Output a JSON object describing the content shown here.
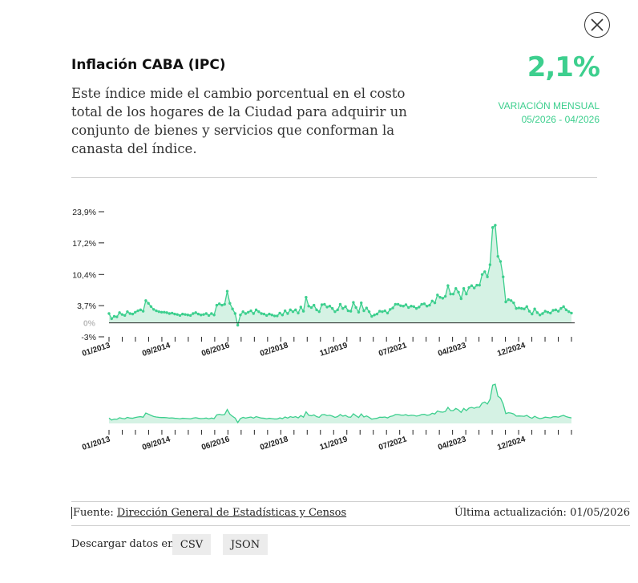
{
  "header": {
    "title": "Inflación CABA (IPC)",
    "description": "Este índice mide el cambio porcentual en el costo total de los hogares de la Ciudad para adquirir un conjunto de bienes y servicios que conforman la canasta del índice.",
    "value": "2,1%",
    "value_label": "VARIACIÓN MENSUAL",
    "value_period": "05/2026 - 04/2026"
  },
  "footer": {
    "source_label": "Fuente:",
    "source_link": "Dirección General de Estadísticas y Censos",
    "updated": "Última actualización: 01/05/2026",
    "download_label": "Descargar datos en:",
    "csv": "CSV",
    "json": "JSON"
  },
  "colors": {
    "accent": "#3dcf8e",
    "fill": "#d5f2e4",
    "line": "#3dcf8e"
  },
  "chart_data": {
    "type": "area",
    "title": "",
    "ylim": [
      -3,
      23.9
    ],
    "y_ticks": [
      "23,9%",
      "17,2%",
      "10,4%",
      "3,7%",
      "0%",
      "-3%"
    ],
    "x_ticks": [
      "01/2013",
      "09/2014",
      "06/2016",
      "02/2018",
      "11/2019",
      "07/2021",
      "04/2023",
      "12/2024"
    ],
    "series": [
      {
        "values": [
          2.0,
          0.9,
          1.4,
          1.3,
          2.2,
          1.8,
          1.6,
          2.4,
          2.0,
          1.9,
          2.3,
          2.6,
          2.8,
          2.5,
          4.8,
          4.2,
          3.5,
          2.9,
          2.6,
          2.4,
          2.3,
          2.3,
          2.2,
          2.0,
          2.1,
          1.9,
          1.8,
          1.6,
          1.9,
          1.8,
          1.7,
          1.6,
          2.0,
          2.2,
          1.9,
          1.7,
          1.8,
          2.0,
          1.6,
          2.0,
          1.7,
          3.8,
          4.1,
          3.8,
          4.0,
          6.8,
          4.2,
          3.0,
          2.0,
          -0.5,
          1.7,
          2.4,
          2.0,
          2.3,
          2.6,
          2.0,
          2.8,
          2.4,
          2.0,
          1.9,
          1.6,
          1.9,
          1.7,
          1.5,
          1.5,
          2.1,
          1.7,
          2.6,
          2.0,
          2.8,
          2.4,
          2.8,
          2.1,
          3.4,
          2.5,
          5.5,
          3.6,
          3.3,
          3.8,
          2.8,
          2.4,
          3.9,
          4.0,
          3.4,
          3.6,
          3.1,
          2.4,
          2.8,
          4.0,
          3.1,
          3.5,
          2.6,
          2.5,
          4.4,
          3.3,
          2.3,
          4.3,
          2.6,
          3.2,
          2.4,
          1.4,
          1.7,
          1.9,
          2.5,
          2.4,
          2.6,
          2.1,
          2.9,
          3.2,
          4.0,
          4.0,
          3.7,
          3.6,
          3.9,
          3.3,
          3.6,
          3.5,
          3.1,
          3.4,
          4.0,
          4.1,
          3.6,
          3.8,
          4.7,
          4.3,
          6.0,
          5.5,
          5.3,
          5.7,
          8.0,
          6.2,
          6.2,
          7.4,
          6.6,
          5.2,
          7.4,
          6.2,
          7.6,
          8.0,
          7.5,
          8.1,
          8.1,
          10.4,
          11.0,
          9.9,
          12.5,
          20.5,
          21.0,
          14.3,
          13.2,
          9.9,
          4.5,
          5.0,
          4.8,
          4.3,
          3.1,
          3.2,
          3.1,
          3.0,
          3.5,
          2.5,
          1.9,
          3.0,
          2.2,
          1.7,
          2.0,
          2.5,
          2.3,
          2.1,
          2.7,
          2.8,
          2.5,
          3.1,
          3.5,
          2.8,
          2.4,
          2.1
        ]
      }
    ]
  }
}
